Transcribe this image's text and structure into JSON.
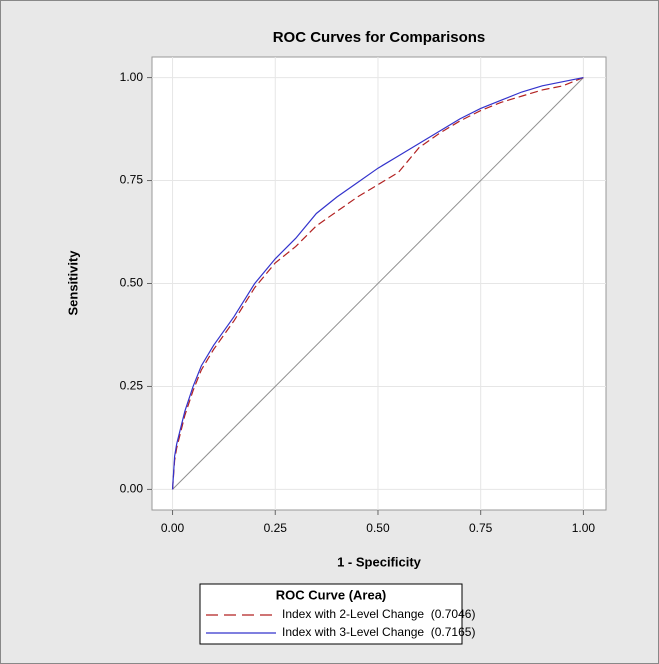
{
  "chart_data": {
    "type": "line",
    "title": "ROC Curves for Comparisons",
    "xlabel": "1 - Specificity",
    "ylabel": "Sensitivity",
    "x": [
      0,
      0.005,
      0.01,
      0.02,
      0.03,
      0.05,
      0.07,
      0.1,
      0.15,
      0.2,
      0.25,
      0.3,
      0.35,
      0.4,
      0.45,
      0.5,
      0.55,
      0.6,
      0.65,
      0.7,
      0.75,
      0.8,
      0.85,
      0.9,
      0.95,
      1
    ],
    "series": [
      {
        "name": "Index with 2-Level Change  (0.7046)",
        "color": "#b22222",
        "dash": true,
        "values": [
          0,
          0.07,
          0.1,
          0.14,
          0.18,
          0.24,
          0.29,
          0.34,
          0.41,
          0.49,
          0.55,
          0.59,
          0.64,
          0.675,
          0.71,
          0.74,
          0.77,
          0.83,
          0.865,
          0.895,
          0.92,
          0.94,
          0.955,
          0.97,
          0.98,
          1
        ]
      },
      {
        "name": "Index with 3-Level Change  (0.7165)",
        "color": "#3333cc",
        "dash": false,
        "values": [
          0,
          0.08,
          0.11,
          0.15,
          0.19,
          0.25,
          0.3,
          0.35,
          0.42,
          0.5,
          0.56,
          0.61,
          0.67,
          0.71,
          0.745,
          0.78,
          0.81,
          0.84,
          0.87,
          0.9,
          0.925,
          0.945,
          0.965,
          0.98,
          0.99,
          1
        ]
      }
    ],
    "reference_line": {
      "x": [
        0,
        1
      ],
      "values": [
        0,
        1
      ],
      "color": "#909090"
    },
    "legend_title": "ROC Curve (Area)",
    "xlim": [
      -0.05,
      1.055
    ],
    "ylim": [
      -0.05,
      1.05
    ],
    "xticks": [
      {
        "value": 0,
        "label": "0.00"
      },
      {
        "value": 0.25,
        "label": "0.25"
      },
      {
        "value": 0.5,
        "label": "0.50"
      },
      {
        "value": 0.75,
        "label": "0.75"
      },
      {
        "value": 1,
        "label": "1.00"
      }
    ],
    "yticks": [
      {
        "value": 0,
        "label": "0.00"
      },
      {
        "value": 0.25,
        "label": "0.25"
      },
      {
        "value": 0.5,
        "label": "0.50"
      },
      {
        "value": 0.75,
        "label": "0.75"
      },
      {
        "value": 1,
        "label": "1.00"
      }
    ],
    "grid": true
  }
}
